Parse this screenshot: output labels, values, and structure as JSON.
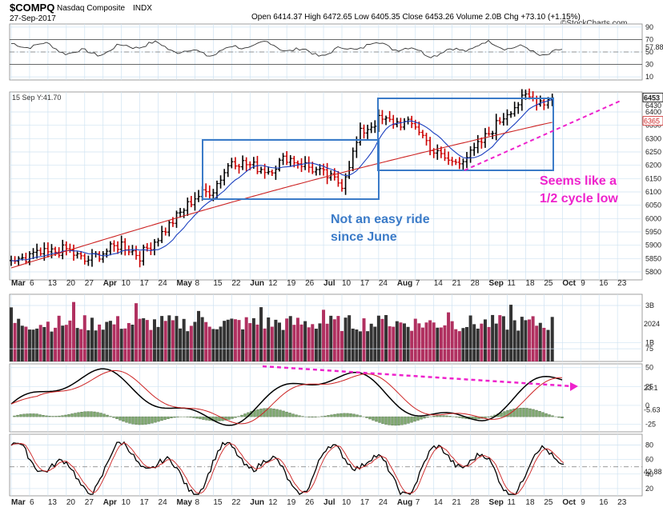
{
  "header": {
    "symbol": "$COMPQ",
    "name": "Nasdaq Composite",
    "exchange": "INDX",
    "date": "27-Sep-2017",
    "ohlc_line": "Open 6414.37   High 6472.65   Low 6405.35   Close 6453.26   Volume 2.0B   Chg +73.10 (+1.15%)",
    "open_arrow": "▲",
    "watermark": "©StockCharts.com"
  },
  "rsi_panel": {
    "ticks": [
      "90",
      "70",
      "50",
      "30",
      "10"
    ],
    "last_label": "57.88"
  },
  "price_panel": {
    "stamp": "15 Sep Y:41.70",
    "ticks": [
      "6400",
      "6350",
      "6300",
      "6250",
      "6200",
      "6150",
      "6100",
      "6050",
      "6000",
      "5950",
      "5900",
      "5850",
      "5800"
    ],
    "last_label": "6453",
    "second_label": "6430",
    "ma_label": "6365",
    "annotations": {
      "box_note_line1": "Not an easy ride",
      "box_note_line2": "since June",
      "cycle_note_line1": "Seems like a",
      "cycle_note_line2": "1/2 cycle low"
    }
  },
  "volume_panel": {
    "ticks": [
      "3B",
      "1B"
    ],
    "last_label": "2024"
  },
  "macd_panel": {
    "ticks": [
      "75",
      "50",
      "25",
      "0",
      "-25"
    ],
    "last_label": "23.1",
    "hist_label": "-5.63"
  },
  "stoch_panel": {
    "ticks": [
      "80",
      "60",
      "40",
      "20"
    ],
    "last_label": "42.88"
  },
  "x_axis": {
    "labels": [
      "Mar",
      "6",
      "13",
      "20",
      "27",
      "Apr",
      "10",
      "17",
      "24",
      "May",
      "8",
      "15",
      "22",
      "Jun",
      "12",
      "19",
      "26",
      "Jul",
      "10",
      "17",
      "24",
      "Aug",
      "7",
      "14",
      "21",
      "28",
      "Sep",
      "11",
      "18",
      "25",
      "Oct",
      "9",
      "16",
      "23"
    ],
    "bold": [
      "Mar",
      "Apr",
      "May",
      "Jun",
      "Jul",
      "Aug",
      "Sep",
      "Oct"
    ]
  },
  "colors": {
    "up_bar": "#000000",
    "down_bar": "#cc0000",
    "ma_short": "#1a3fbf",
    "ma_long": "#cc2222",
    "annotation_blue": "#3b7bc8",
    "annotation_magenta": "#ee22cc",
    "volume_up": "#333333",
    "volume_down": "#b03060",
    "macd_hist": "#7fa86f",
    "grid": "#cfe3f2"
  },
  "chart_data": {
    "type": "line",
    "title": "$COMPQ Nasdaq Composite INDX",
    "series": [
      {
        "name": "Nasdaq Composite",
        "x": [
          "Mar 6",
          "Mar 13",
          "Mar 20",
          "Mar 27",
          "Apr 10",
          "Apr 17",
          "Apr 24",
          "May 8",
          "May 15",
          "May 22",
          "Jun 12",
          "Jun 19",
          "Jun 26",
          "Jul 10",
          "Jul 17",
          "Jul 24",
          "Aug 7",
          "Aug 14",
          "Aug 21",
          "Aug 28",
          "Sep 11",
          "Sep 18",
          "Sep 25",
          "Sep 27"
        ],
        "values": [
          5860,
          5870,
          5885,
          5840,
          5905,
          5860,
          5930,
          6080,
          6110,
          6220,
          6180,
          6230,
          6200,
          6130,
          6320,
          6370,
          6350,
          6250,
          6210,
          6240,
          6400,
          6455,
          6440,
          6453
        ]
      }
    ],
    "ylim": [
      5750,
      6480
    ]
  }
}
